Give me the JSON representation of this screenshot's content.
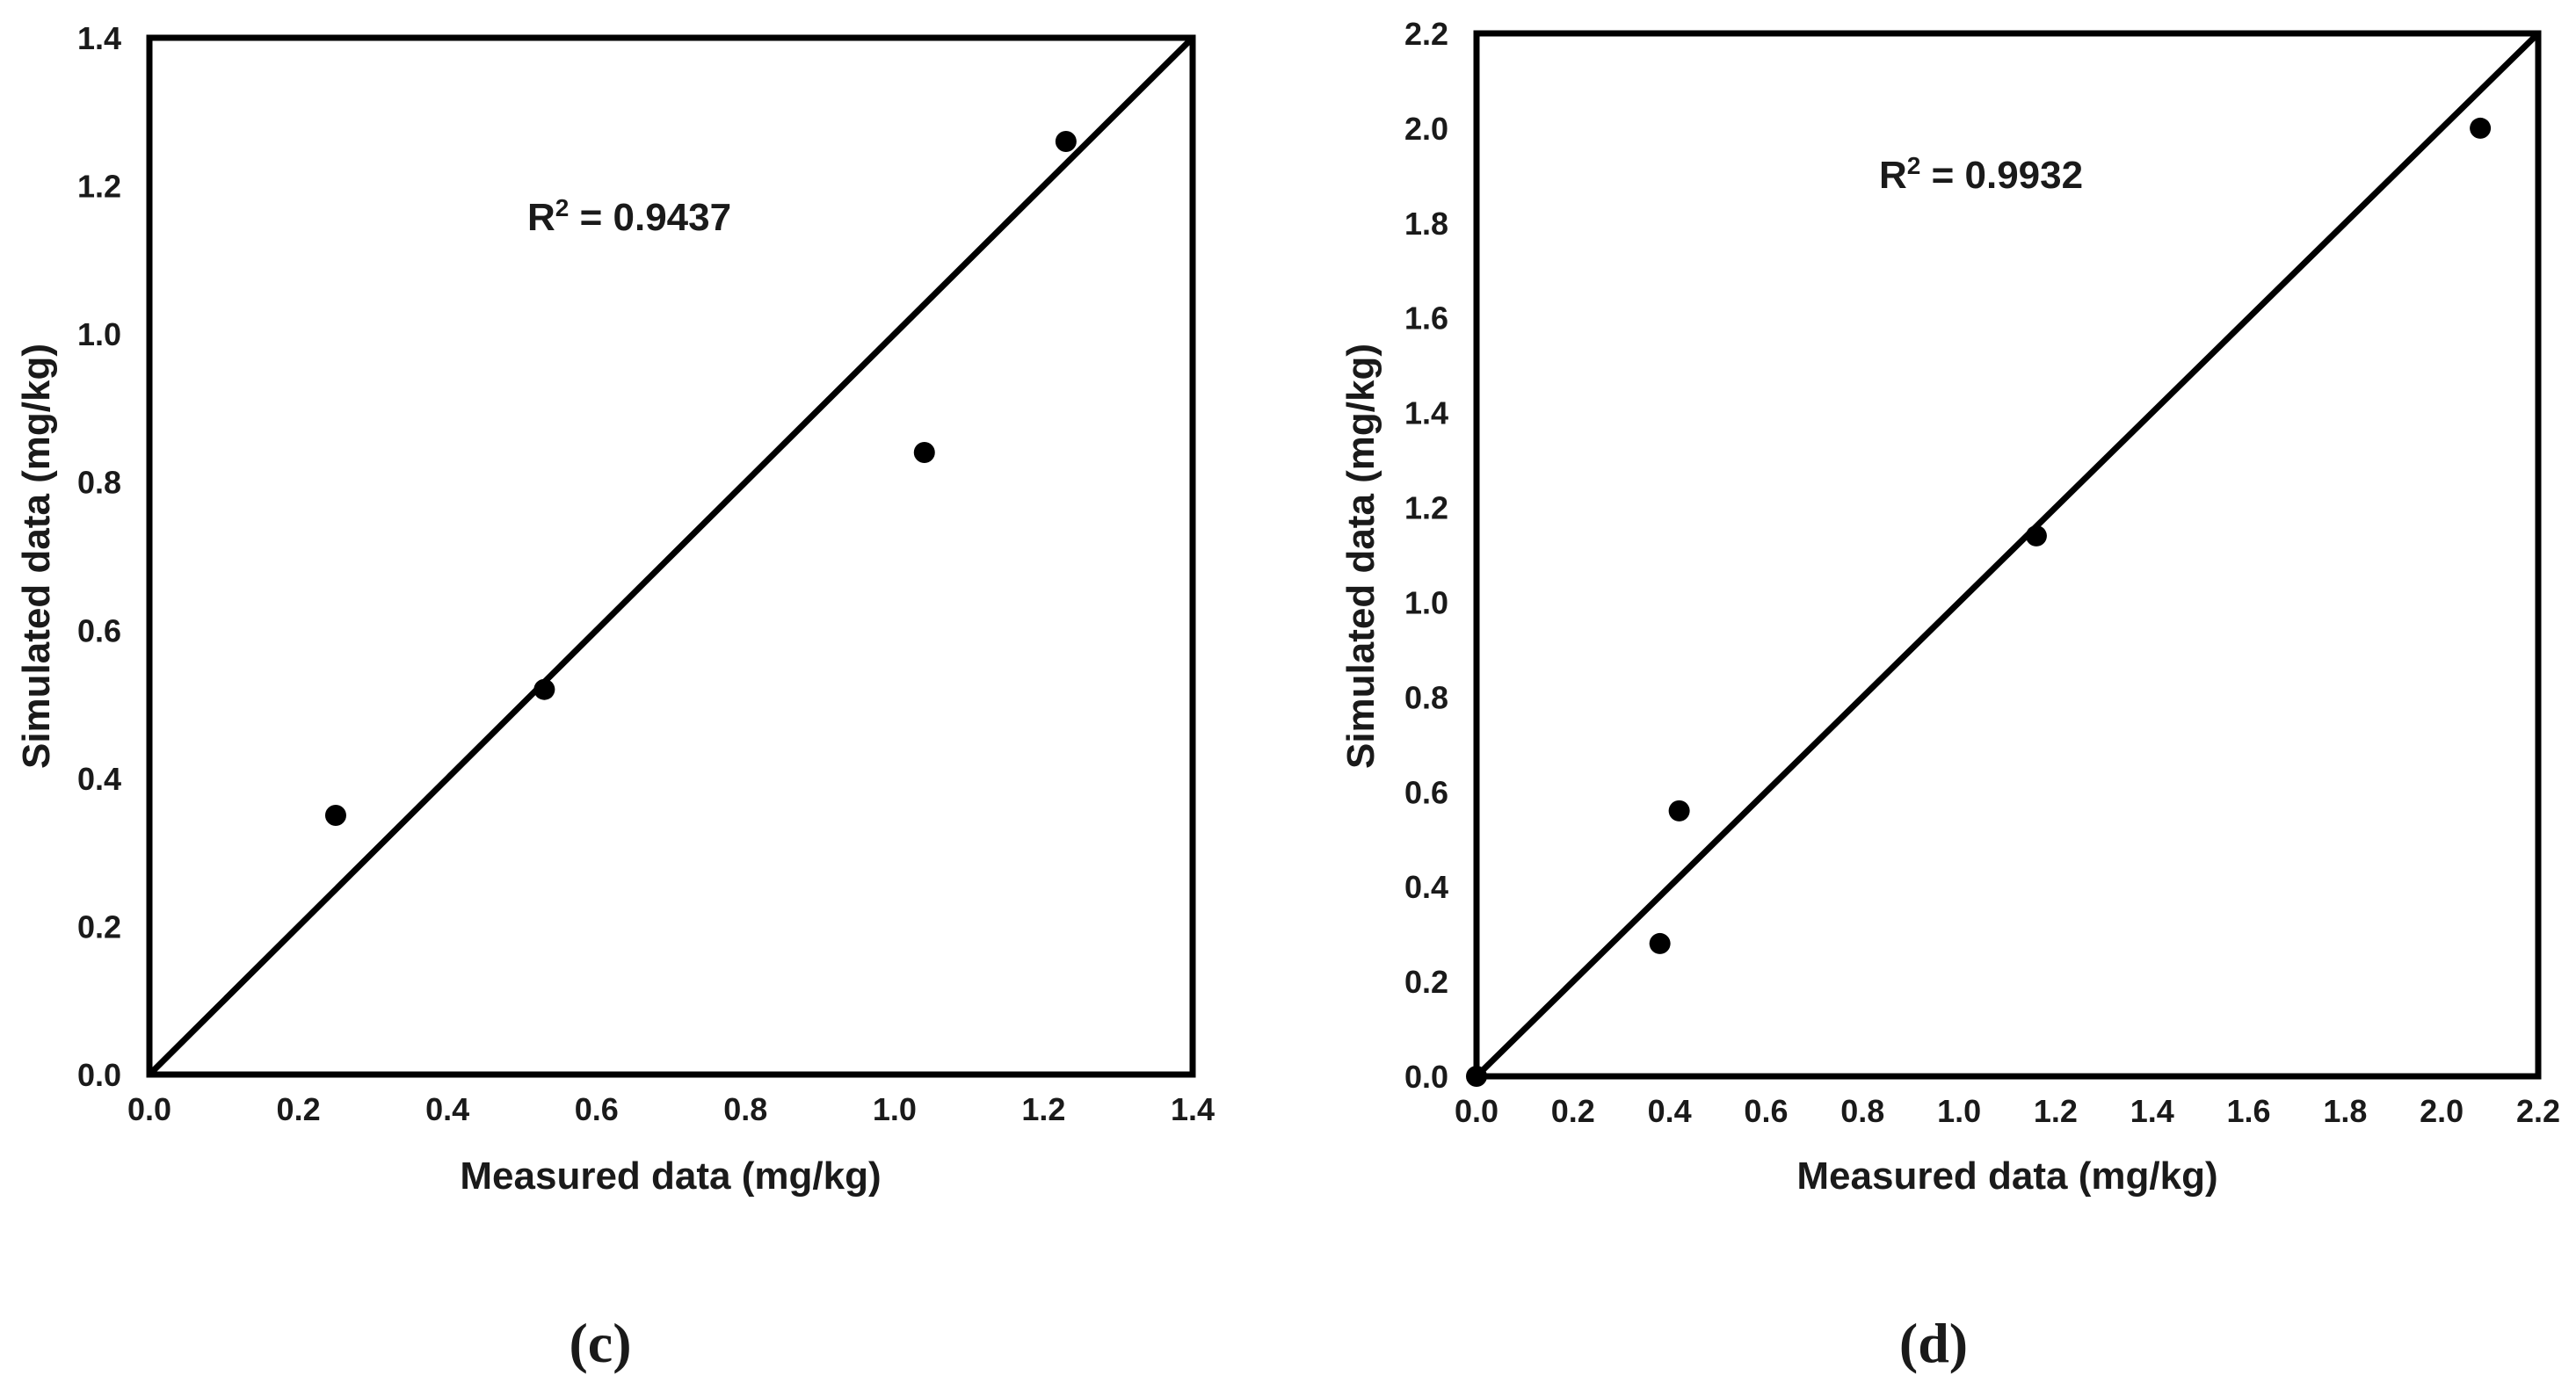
{
  "chart_data": [
    {
      "type": "scatter",
      "panel_label": "(c)",
      "xlabel": "Measured data (mg/kg)",
      "ylabel": "Simulated data (mg/kg)",
      "xlim": [
        0,
        1.4
      ],
      "ylim": [
        0,
        1.4
      ],
      "xticks": [
        "0.0",
        "0.2",
        "0.4",
        "0.6",
        "0.8",
        "1.0",
        "1.2",
        "1.4"
      ],
      "yticks": [
        "0.0",
        "0.2",
        "0.4",
        "0.6",
        "0.8",
        "1.0",
        "1.2",
        "1.4"
      ],
      "annotation": {
        "prefix": "R",
        "superscript": "2",
        "text": " = 0.9437"
      },
      "reference_line": "1:1",
      "points": [
        {
          "x": 0.25,
          "y": 0.35
        },
        {
          "x": 0.53,
          "y": 0.52
        },
        {
          "x": 1.04,
          "y": 0.84
        },
        {
          "x": 1.23,
          "y": 1.26
        }
      ]
    },
    {
      "type": "scatter",
      "panel_label": "(d)",
      "xlabel": "Measured data (mg/kg)",
      "ylabel": "Simulated data (mg/kg)",
      "xlim": [
        0,
        2.2
      ],
      "ylim": [
        0,
        2.2
      ],
      "xticks": [
        "0.0",
        "0.2",
        "0.4",
        "0.6",
        "0.8",
        "1.0",
        "1.2",
        "1.4",
        "1.6",
        "1.8",
        "2.0",
        "2.2"
      ],
      "yticks": [
        "0.0",
        "0.2",
        "0.4",
        "0.6",
        "0.8",
        "1.0",
        "1.2",
        "1.4",
        "1.6",
        "1.8",
        "2.0",
        "2.2"
      ],
      "annotation": {
        "prefix": "R",
        "superscript": "2",
        "text": " = 0.9932"
      },
      "reference_line": "1:1",
      "points": [
        {
          "x": 0.0,
          "y": 0.0
        },
        {
          "x": 0.38,
          "y": 0.28
        },
        {
          "x": 0.42,
          "y": 0.56
        },
        {
          "x": 1.16,
          "y": 1.14
        },
        {
          "x": 2.08,
          "y": 2.0
        }
      ]
    }
  ]
}
